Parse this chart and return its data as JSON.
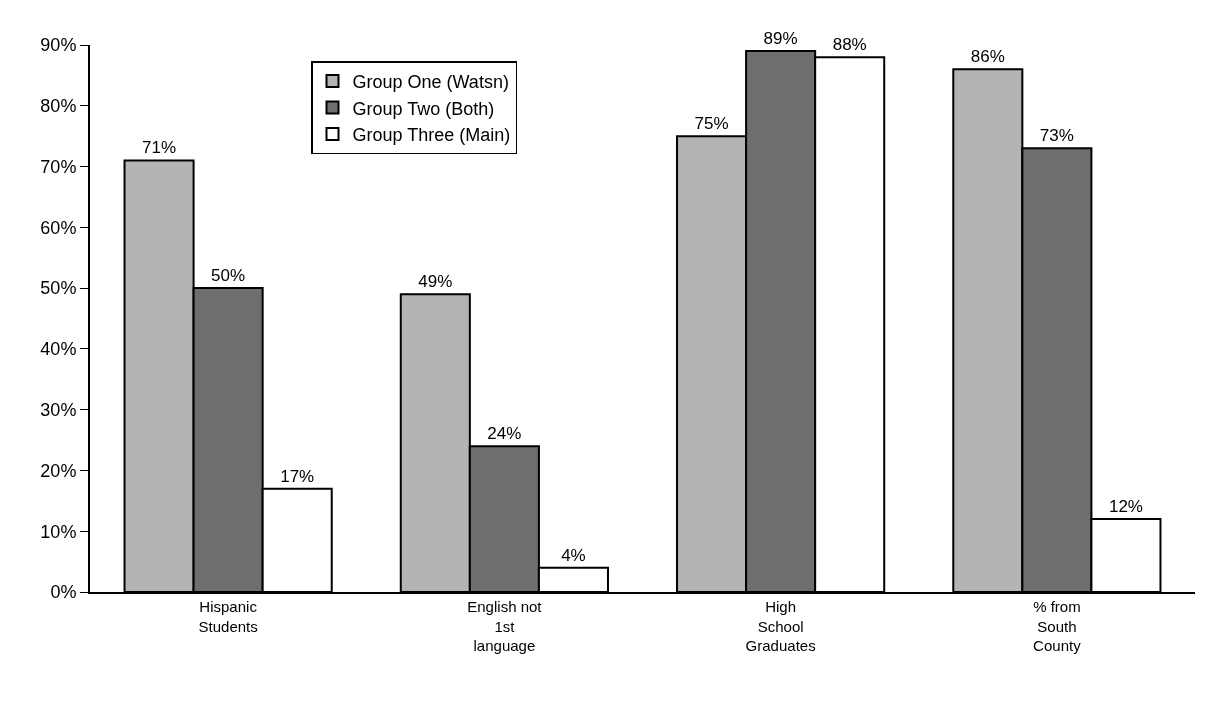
{
  "chart_data": {
    "type": "bar",
    "categories": [
      "Hispanic\nStudents",
      "English not\n1st\nlanguage",
      "High\nSchool\nGraduates",
      "% from\nSouth\nCounty"
    ],
    "series": [
      {
        "name": "Group One (Watsn)",
        "color": "#b4b4b4",
        "values": [
          71,
          49,
          75,
          86
        ],
        "value_labels": [
          "71%",
          "49%",
          "75%",
          "86%"
        ]
      },
      {
        "name": "Group Two (Both)",
        "color": "#6e6e6e",
        "values": [
          50,
          24,
          89,
          73
        ],
        "value_labels": [
          "50%",
          "24%",
          "89%",
          "73%"
        ]
      },
      {
        "name": "Group Three (Main)",
        "color": "#ffffff",
        "values": [
          17,
          4,
          88,
          12
        ],
        "value_labels": [
          "17%",
          "4%",
          "88%",
          "12%"
        ]
      }
    ],
    "ylim": [
      0,
      90
    ],
    "yticks": [
      {
        "value": 0,
        "label": "0%"
      },
      {
        "value": 10,
        "label": "10%"
      },
      {
        "value": 20,
        "label": "20%"
      },
      {
        "value": 30,
        "label": "30%"
      },
      {
        "value": 40,
        "label": "40%"
      },
      {
        "value": 50,
        "label": "50%"
      },
      {
        "value": 60,
        "label": "60%"
      },
      {
        "value": 70,
        "label": "70%"
      },
      {
        "value": 80,
        "label": "80%"
      },
      {
        "value": 90,
        "label": "90%"
      }
    ],
    "grid": false,
    "legend": "top left"
  }
}
